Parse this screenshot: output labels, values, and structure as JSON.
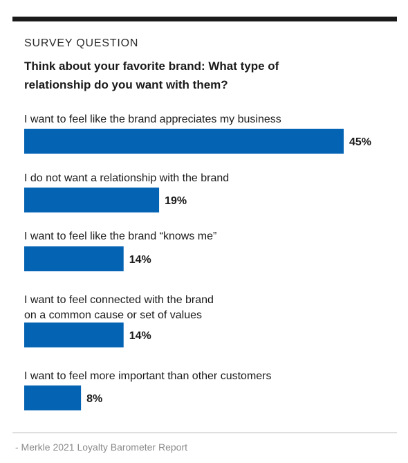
{
  "header": {
    "eyebrow": "SURVEY QUESTION",
    "question": "Think about your favorite brand: What type of relationship do you want with them?"
  },
  "chart_data": {
    "type": "bar",
    "orientation": "horizontal",
    "categories": [
      [
        "I want to feel like the brand appreciates my business"
      ],
      [
        "I do not want a relationship with the brand"
      ],
      [
        "I want to feel like the brand “knows me”"
      ],
      [
        "I want to feel connected with the brand",
        "on a common cause or set of values"
      ],
      [
        "I want to feel more important than other customers"
      ]
    ],
    "values": [
      45,
      19,
      14,
      14,
      8
    ],
    "value_labels": [
      "45%",
      "19%",
      "14%",
      "14%",
      "8%"
    ],
    "unit": "%",
    "bar_color": "#0563b4",
    "grid": false,
    "legend": "none"
  },
  "footer": {
    "source": "- Merkle 2021 Loyalty Barometer Report"
  }
}
